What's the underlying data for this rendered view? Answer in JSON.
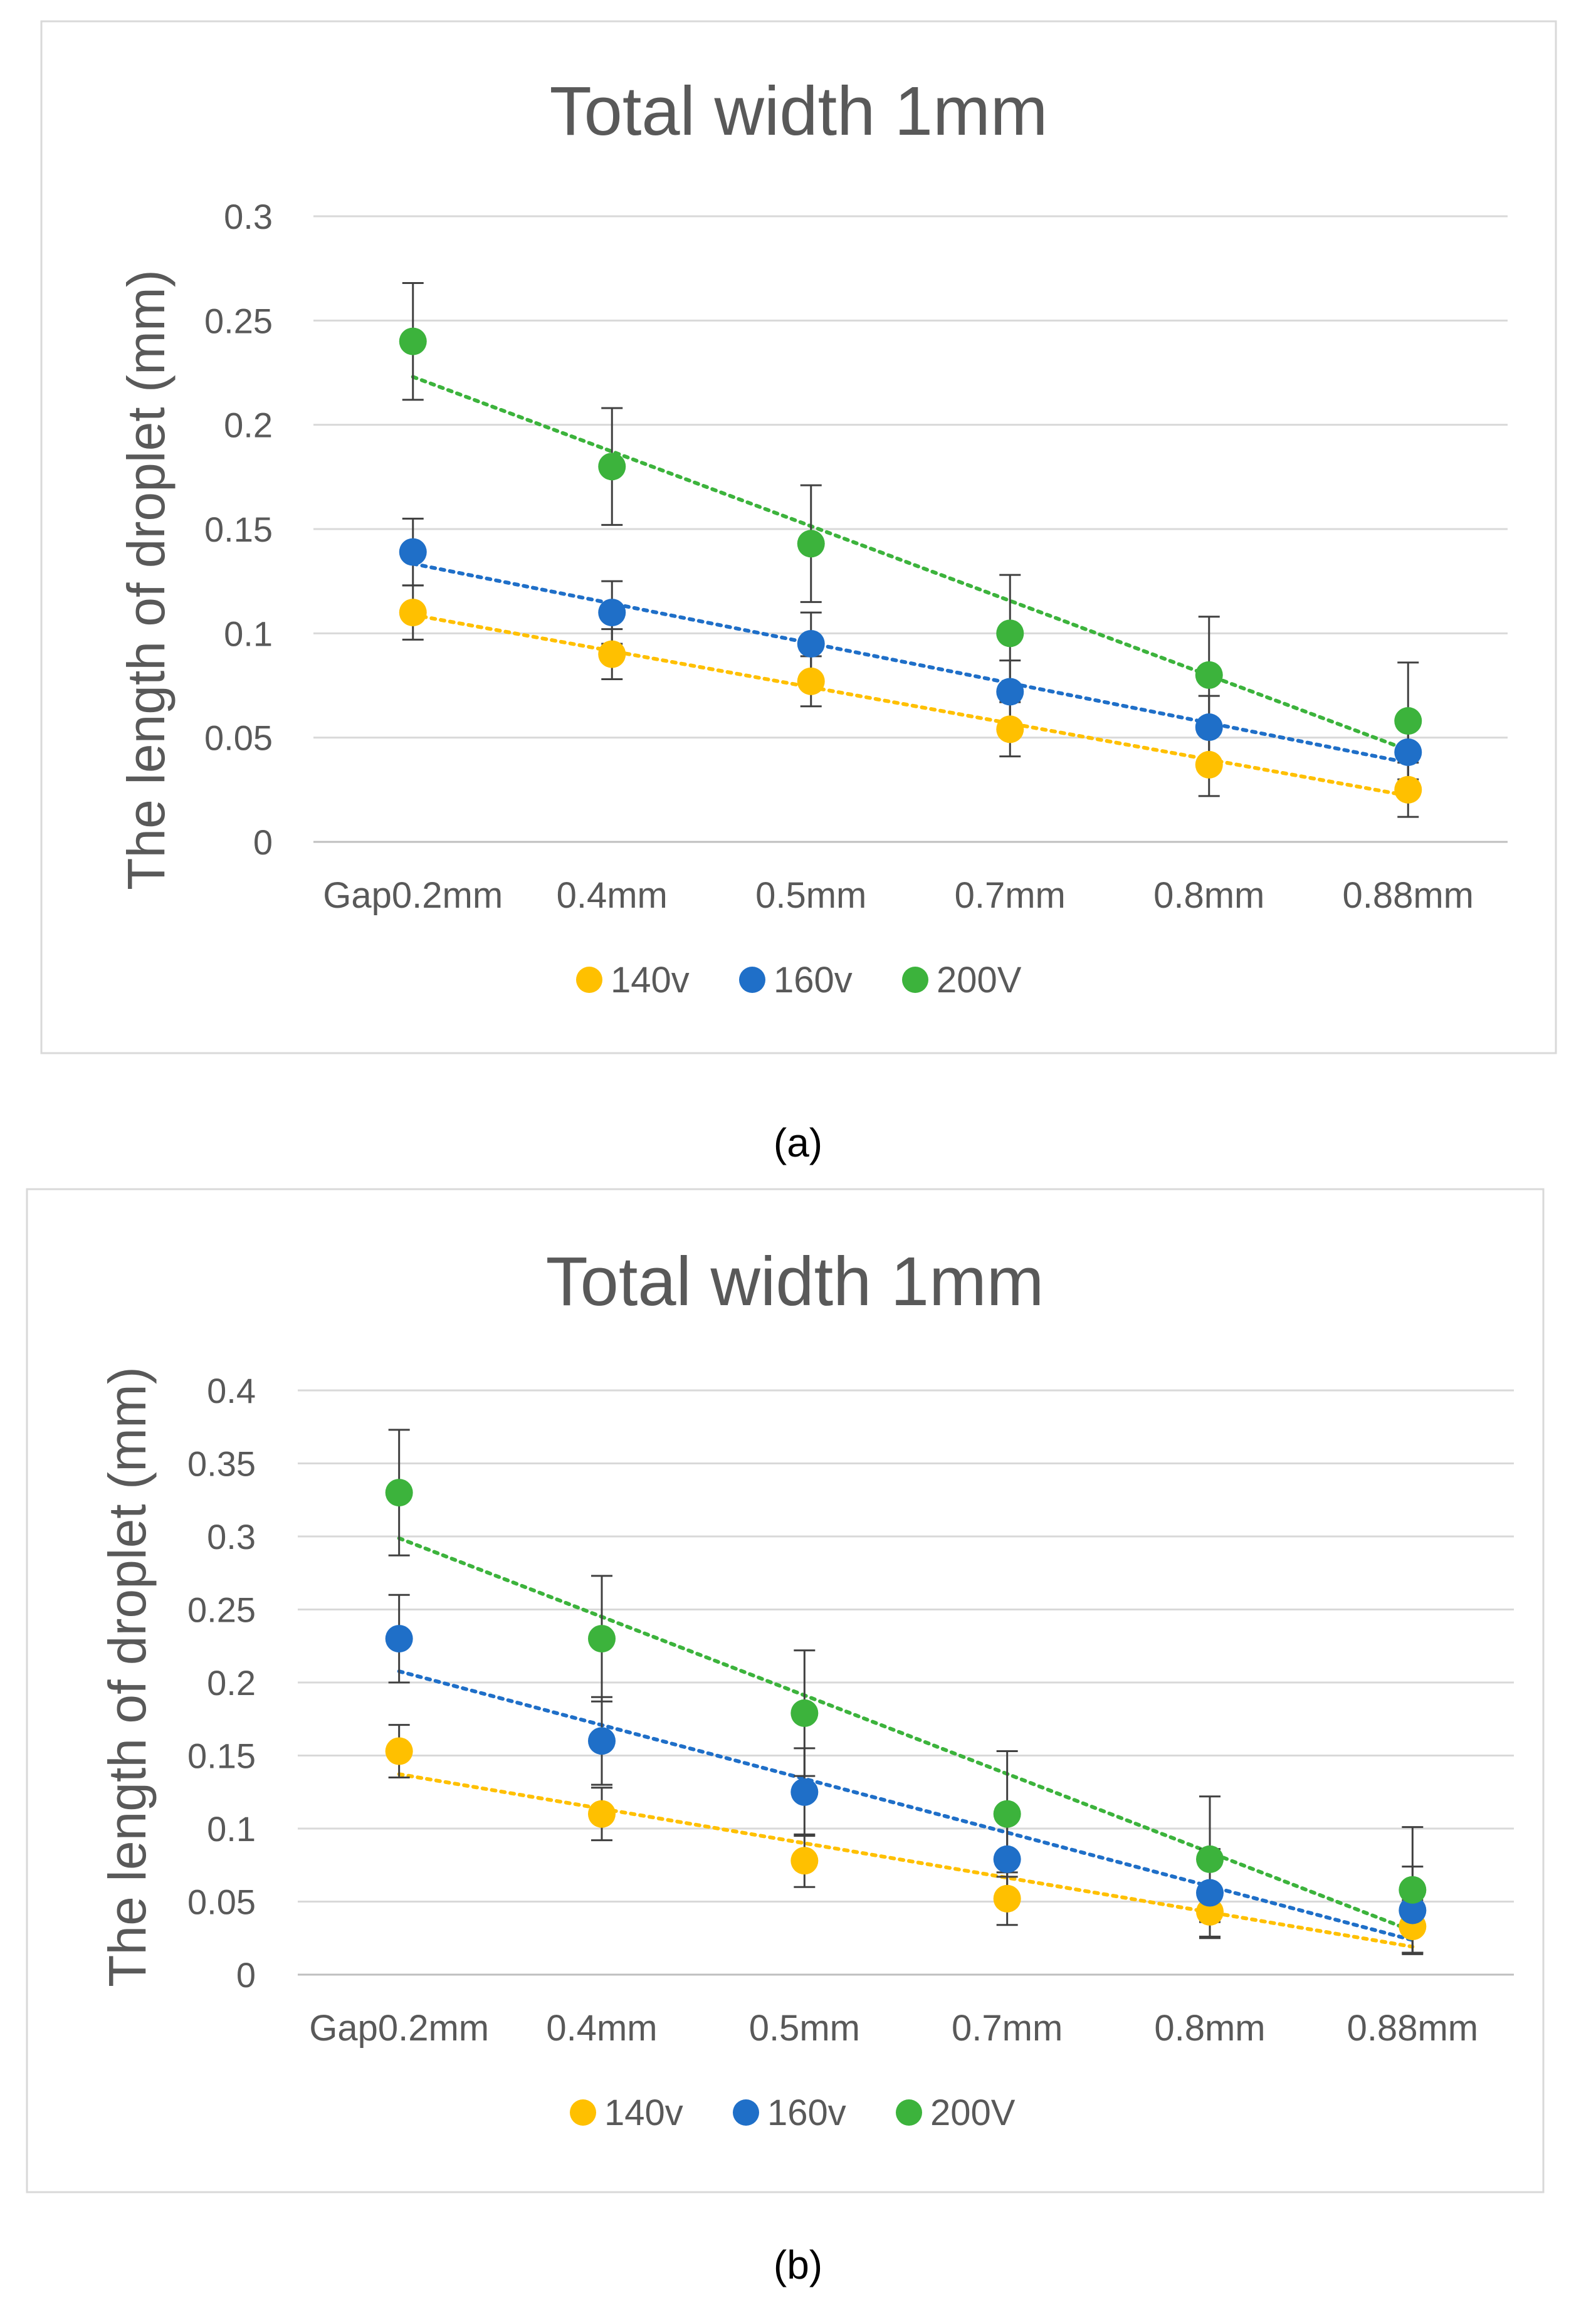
{
  "chart_data": [
    {
      "type": "scatter",
      "panel_label": "(a)",
      "title": "Total width 1mm",
      "xlabel": "",
      "ylabel": "The length of droplet (mm)",
      "categories": [
        "Gap0.2mm",
        "0.4mm",
        "0.5mm",
        "0.7mm",
        "0.8mm",
        "0.88mm"
      ],
      "ylim": [
        0,
        0.3
      ],
      "yticks": [
        0,
        0.05,
        0.1,
        0.15,
        0.2,
        0.25,
        0.3
      ],
      "ytick_labels": [
        "0",
        "0.05",
        "0.1",
        "0.15",
        "0.2",
        "0.25",
        "0.3"
      ],
      "grid": true,
      "legend": "bottom",
      "trendline": "linear dotted",
      "series": [
        {
          "name": "140v",
          "color": "#FFC000",
          "values": [
            0.11,
            0.09,
            0.077,
            0.054,
            0.037,
            0.025
          ],
          "errors": [
            0.013,
            0.012,
            0.012,
            0.013,
            0.015,
            0.013
          ]
        },
        {
          "name": "160v",
          "color": "#1F6FC8",
          "values": [
            0.139,
            0.11,
            0.095,
            0.072,
            0.055,
            0.043
          ],
          "errors": [
            0.016,
            0.015,
            0.015,
            0.015,
            0.015,
            0.015
          ]
        },
        {
          "name": "200V",
          "color": "#3CB33C",
          "values": [
            0.24,
            0.18,
            0.143,
            0.1,
            0.08,
            0.058
          ],
          "errors": [
            0.028,
            0.028,
            0.028,
            0.028,
            0.028,
            0.028
          ]
        }
      ]
    },
    {
      "type": "scatter",
      "panel_label": "(b)",
      "title": "Total width 1mm",
      "xlabel": "",
      "ylabel": "The length of droplet (mm)",
      "categories": [
        "Gap0.2mm",
        "0.4mm",
        "0.5mm",
        "0.7mm",
        "0.8mm",
        "0.88mm"
      ],
      "ylim": [
        0,
        0.4
      ],
      "yticks": [
        0,
        0.05,
        0.1,
        0.15,
        0.2,
        0.25,
        0.3,
        0.35,
        0.4
      ],
      "ytick_labels": [
        "0",
        "0.05",
        "0.1",
        "0.15",
        "0.2",
        "0.25",
        "0.3",
        "0.35",
        "0.4"
      ],
      "grid": true,
      "legend": "bottom",
      "trendline": "linear dotted",
      "series": [
        {
          "name": "140v",
          "color": "#FFC000",
          "values": [
            0.153,
            0.11,
            0.078,
            0.052,
            0.043,
            0.033
          ],
          "errors": [
            0.018,
            0.018,
            0.018,
            0.018,
            0.018,
            0.018
          ]
        },
        {
          "name": "160v",
          "color": "#1F6FC8",
          "values": [
            0.23,
            0.16,
            0.125,
            0.079,
            0.056,
            0.044
          ],
          "errors": [
            0.03,
            0.03,
            0.03,
            0.03,
            0.03,
            0.03
          ]
        },
        {
          "name": "200V",
          "color": "#3CB33C",
          "values": [
            0.33,
            0.23,
            0.179,
            0.11,
            0.079,
            0.058
          ],
          "errors": [
            0.043,
            0.043,
            0.043,
            0.043,
            0.043,
            0.043
          ]
        }
      ]
    }
  ]
}
